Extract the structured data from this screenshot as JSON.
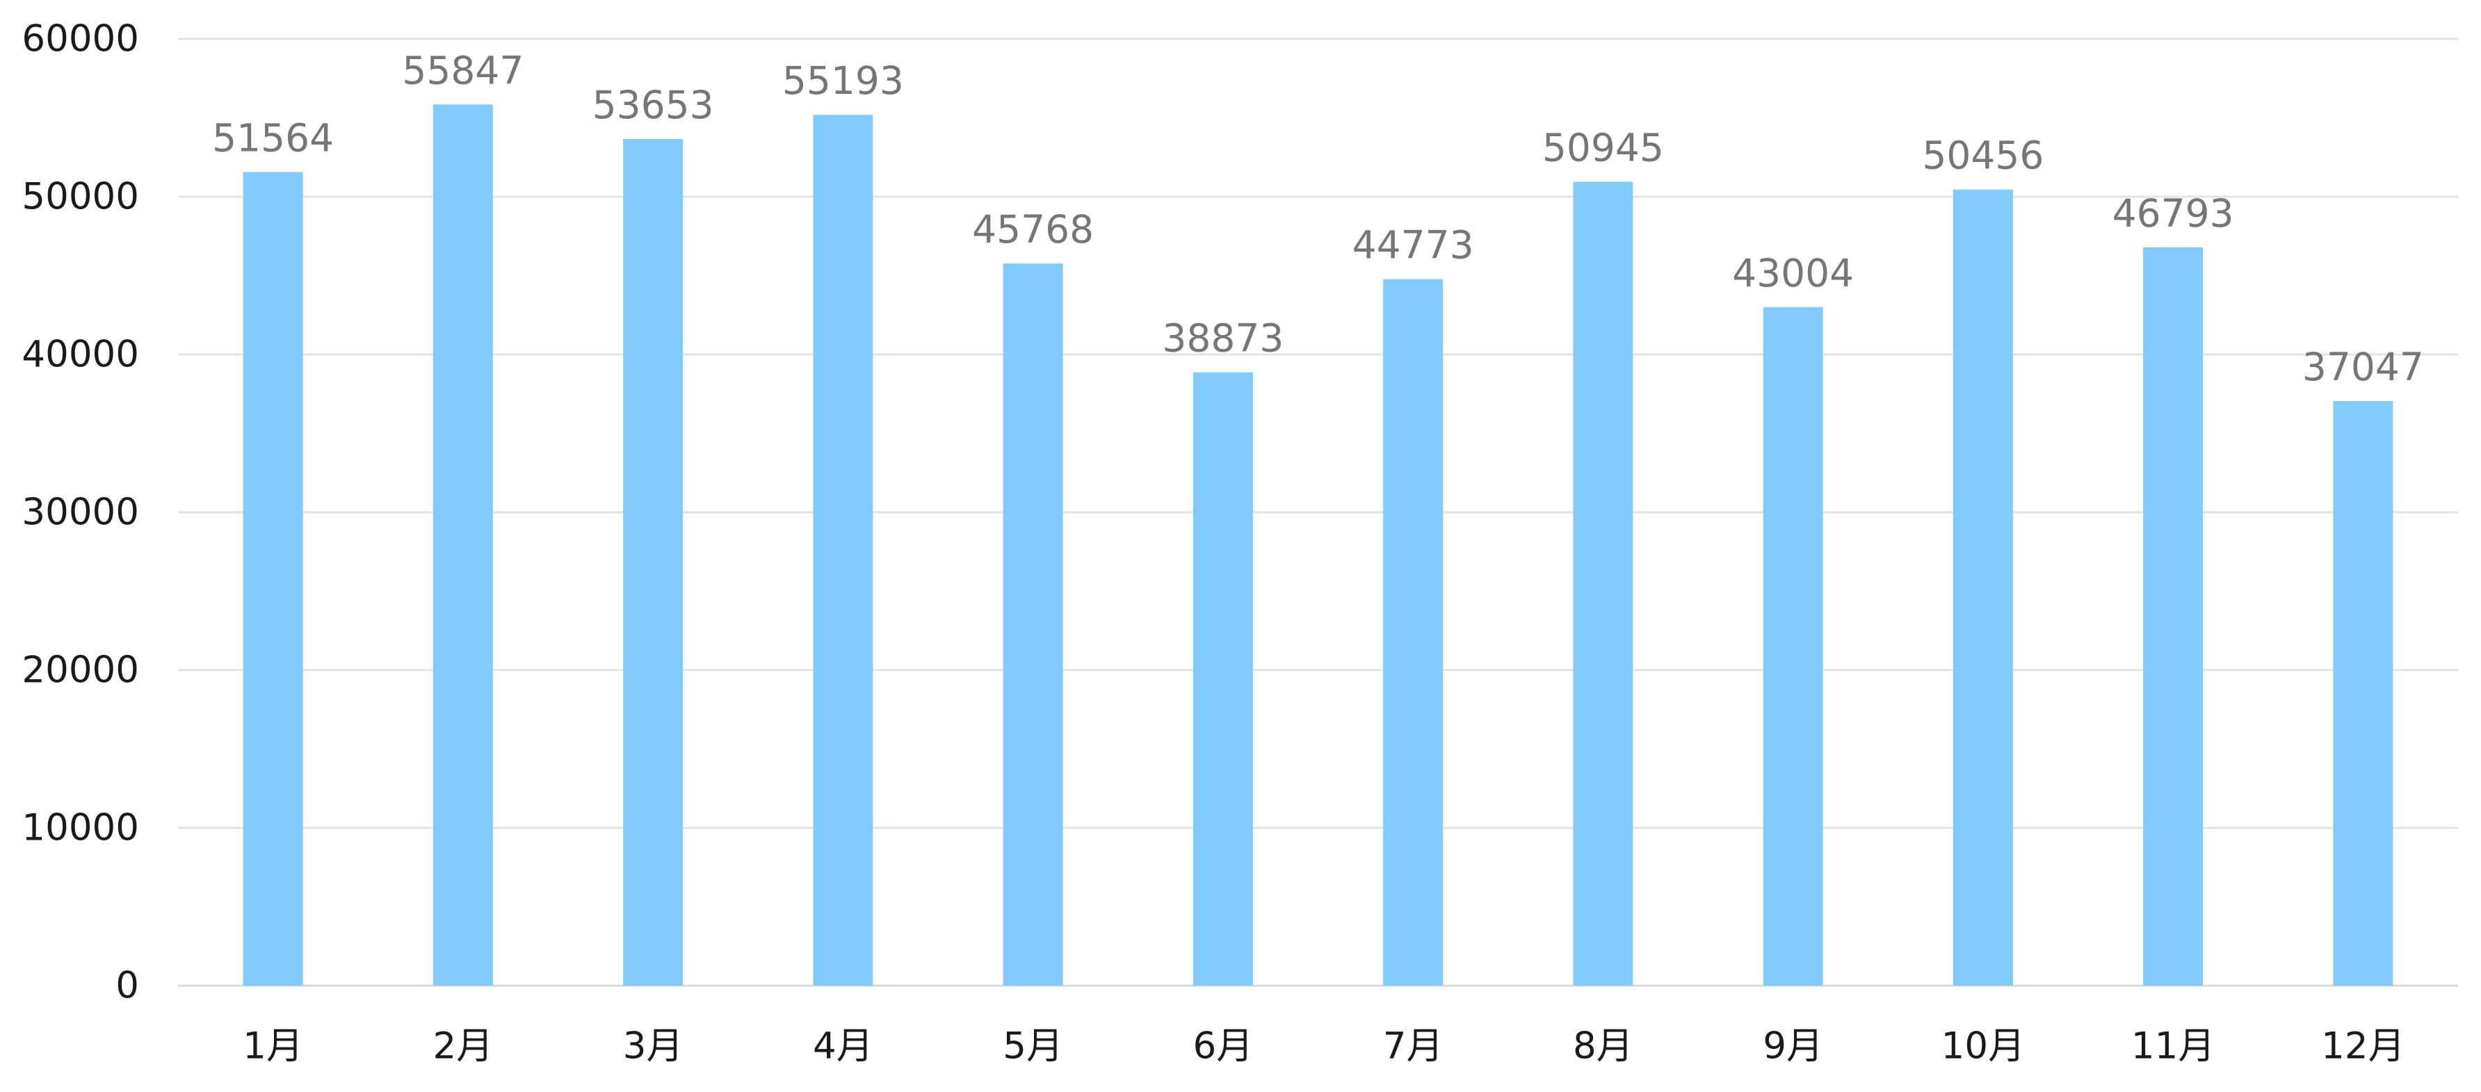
{
  "chart_data": {
    "type": "bar",
    "categories": [
      "1月",
      "2月",
      "3月",
      "4月",
      "5月",
      "6月",
      "7月",
      "8月",
      "9月",
      "10月",
      "11月",
      "12月"
    ],
    "values": [
      51564,
      55847,
      53653,
      55193,
      45768,
      38873,
      44773,
      50945,
      43004,
      50456,
      46793,
      37047
    ],
    "y_ticks": [
      "0",
      "10000",
      "20000",
      "30000",
      "40000",
      "50000",
      "60000"
    ],
    "ylim": [
      0,
      60000
    ],
    "title": "",
    "xlabel": "",
    "ylabel": "",
    "grid": true,
    "legend": "none",
    "data_labels": true,
    "colors": {
      "bar": "#82cbff",
      "data_label": "#767676",
      "tick_label": "#1a1a1a",
      "grid": "#e3e3e3"
    }
  }
}
